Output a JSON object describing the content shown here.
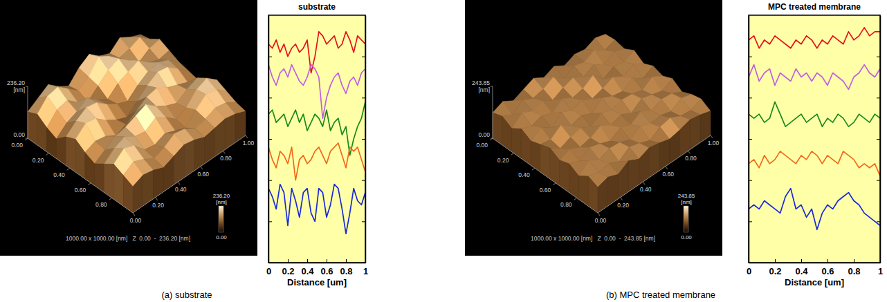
{
  "chart_data": [
    {
      "type": "surface",
      "caption": "(a) substrate",
      "annotation": "1000.00 x 1000.00 [nm]   Z  0.00  -  236.20 [nm]",
      "xlim": [
        0,
        1
      ],
      "xticks": [
        {
          "value": 0,
          "label": "0.00"
        },
        {
          "value": 0.2,
          "label": "0.20"
        },
        {
          "value": 0.4,
          "label": "0.40"
        },
        {
          "value": 0.6,
          "label": "0.60"
        },
        {
          "value": 0.8,
          "label": "0.80"
        }
      ],
      "ylim": [
        0,
        1
      ],
      "yticks": [
        {
          "value": 0,
          "label": "0.00"
        },
        {
          "value": 0.2,
          "label": "0.20"
        },
        {
          "value": 0.4,
          "label": "0.40"
        },
        {
          "value": 0.6,
          "label": "0.60"
        },
        {
          "value": 0.8,
          "label": "0.80"
        },
        {
          "value": 1,
          "label": "1.00"
        }
      ],
      "zlim": [
        0,
        236.2
      ],
      "zticks": [
        {
          "value": 0,
          "label": "0.00"
        },
        {
          "value": 236.2,
          "label": "236.20"
        }
      ],
      "zlabel": "[nm]",
      "z": [
        [
          120,
          150,
          180,
          140,
          110,
          160,
          190,
          150,
          130,
          170,
          140,
          120
        ],
        [
          140,
          190,
          200,
          160,
          120,
          150,
          210,
          180,
          140,
          150,
          170,
          130
        ],
        [
          110,
          160,
          170,
          130,
          100,
          140,
          180,
          200,
          160,
          120,
          150,
          160
        ],
        [
          90,
          130,
          150,
          180,
          140,
          110,
          150,
          170,
          190,
          150,
          130,
          140
        ],
        [
          130,
          170,
          200,
          190,
          150,
          120,
          100,
          140,
          170,
          180,
          160,
          120
        ],
        [
          150,
          190,
          180,
          140,
          110,
          90,
          130,
          170,
          200,
          190,
          150,
          110
        ],
        [
          120,
          140,
          130,
          100,
          120,
          150,
          180,
          190,
          160,
          140,
          120,
          100
        ],
        [
          100,
          130,
          160,
          170,
          190,
          210,
          170,
          140,
          120,
          150,
          170,
          130
        ],
        [
          130,
          170,
          190,
          160,
          150,
          180,
          150,
          110,
          130,
          180,
          200,
          160
        ],
        [
          160,
          200,
          180,
          130,
          120,
          140,
          120,
          100,
          150,
          190,
          180,
          140
        ],
        [
          140,
          170,
          150,
          120,
          140,
          170,
          160,
          130,
          140,
          160,
          150,
          120
        ],
        [
          120,
          140,
          130,
          110,
          130,
          150,
          140,
          120,
          130,
          140,
          130,
          110
        ]
      ],
      "colorbar": {
        "range": [
          0,
          236.2
        ],
        "ticks": [
          {
            "value": 236.2,
            "label": "236.20"
          },
          {
            "value": 0,
            "label": "0.00"
          }
        ],
        "label": "[nm]"
      }
    },
    {
      "type": "line",
      "title": "substrate",
      "xlabel": "Distance [um]",
      "x": [
        0,
        0.04,
        0.08,
        0.12,
        0.16,
        0.2,
        0.24,
        0.28,
        0.32,
        0.36,
        0.4,
        0.44,
        0.48,
        0.52,
        0.56,
        0.6,
        0.64,
        0.68,
        0.72,
        0.76,
        0.8,
        0.84,
        0.88,
        0.92,
        0.96,
        1
      ],
      "xlim": [
        0,
        1
      ],
      "xticks": [
        0,
        0.2,
        0.4,
        0.6,
        0.8,
        1
      ],
      "ylim": [
        0,
        6
      ],
      "yticks": [
        1,
        2,
        3,
        4,
        5
      ],
      "tick_labels": "x",
      "series": [
        {
          "color": "#e8101c",
          "values": [
            5.3,
            5.2,
            5.4,
            5.1,
            5.3,
            5.0,
            5.2,
            5.3,
            5.1,
            5.2,
            5.4,
            4.6,
            5.0,
            5.6,
            5.5,
            5.3,
            5.4,
            5.5,
            5.2,
            5.3,
            5.6,
            5.4,
            5.1,
            5.5,
            5.4,
            5.3
          ]
        },
        {
          "color": "#c060e0",
          "values": [
            4.8,
            4.5,
            4.3,
            4.6,
            4.7,
            4.5,
            4.8,
            4.6,
            4.4,
            4.3,
            4.5,
            4.8,
            4.7,
            4.5,
            3.5,
            4.0,
            4.3,
            4.5,
            4.6,
            4.3,
            4.1,
            4.4,
            4.5,
            4.3,
            4.6,
            4.7
          ]
        },
        {
          "color": "#1a8a1a",
          "values": [
            3.6,
            3.7,
            3.4,
            3.5,
            3.6,
            3.3,
            3.5,
            3.7,
            3.4,
            3.6,
            3.2,
            3.4,
            3.6,
            3.5,
            3.3,
            3.7,
            3.2,
            3.4,
            3.5,
            3.1,
            3.3,
            2.6,
            3.0,
            3.3,
            3.5,
            3.9
          ]
        },
        {
          "color": "#f06a1a",
          "values": [
            2.8,
            2.5,
            2.3,
            2.7,
            2.6,
            2.4,
            2.8,
            2.0,
            2.5,
            2.6,
            2.4,
            2.5,
            2.7,
            2.8,
            2.6,
            2.4,
            2.7,
            2.8,
            2.9,
            2.6,
            2.3,
            2.8,
            2.7,
            2.8,
            2.5,
            2.2
          ]
        },
        {
          "color": "#1a2ad8",
          "values": [
            1.8,
            1.6,
            1.3,
            1.9,
            1.7,
            0.9,
            1.8,
            1.5,
            1.1,
            1.7,
            1.8,
            1.2,
            1.0,
            1.8,
            1.7,
            1.1,
            1.4,
            1.9,
            1.8,
            1.3,
            0.7,
            1.2,
            1.8,
            1.5,
            1.4,
            1.7
          ]
        }
      ]
    },
    {
      "type": "surface",
      "caption": "(b) MPC treated membrane",
      "annotation": "1000.00 x 1000.00 [nm]   Z  0.00  -  243.85 [nm]",
      "xlim": [
        0,
        1
      ],
      "xticks": [
        {
          "value": 0,
          "label": "0.00"
        },
        {
          "value": 0.2,
          "label": "0.20"
        },
        {
          "value": 0.4,
          "label": "0.40"
        },
        {
          "value": 0.6,
          "label": "0.60"
        },
        {
          "value": 0.8,
          "label": "0.80"
        }
      ],
      "ylim": [
        0,
        1
      ],
      "yticks": [
        {
          "value": 0,
          "label": "0.00"
        },
        {
          "value": 0.2,
          "label": "0.20"
        },
        {
          "value": 0.4,
          "label": "0.40"
        },
        {
          "value": 0.6,
          "label": "0.60"
        },
        {
          "value": 0.8,
          "label": "0.80"
        },
        {
          "value": 1,
          "label": "1.00"
        }
      ],
      "zlim": [
        0,
        243.85
      ],
      "zticks": [
        {
          "value": 0,
          "label": "0.00"
        },
        {
          "value": 243.85,
          "label": "243.85"
        }
      ],
      "zlabel": "[nm]",
      "z": [
        [
          120,
          140,
          110,
          130,
          150,
          120,
          140,
          110,
          130,
          120,
          140,
          125
        ],
        [
          135,
          110,
          145,
          120,
          130,
          155,
          115,
          140,
          125,
          150,
          115,
          130
        ],
        [
          110,
          150,
          125,
          140,
          110,
          135,
          150,
          120,
          145,
          115,
          140,
          120
        ],
        [
          140,
          120,
          135,
          115,
          150,
          120,
          130,
          160,
          110,
          135,
          125,
          145
        ],
        [
          115,
          145,
          110,
          150,
          125,
          140,
          115,
          130,
          150,
          120,
          145,
          115
        ],
        [
          130,
          120,
          155,
          120,
          135,
          110,
          150,
          125,
          115,
          145,
          110,
          135
        ],
        [
          145,
          110,
          130,
          140,
          115,
          145,
          125,
          140,
          135,
          120,
          150,
          120
        ],
        [
          120,
          140,
          115,
          125,
          150,
          120,
          135,
          110,
          145,
          130,
          115,
          140
        ],
        [
          135,
          115,
          145,
          130,
          110,
          140,
          120,
          150,
          120,
          140,
          135,
          110
        ],
        [
          110,
          150,
          120,
          140,
          135,
          115,
          145,
          125,
          130,
          115,
          145,
          130
        ],
        [
          140,
          125,
          135,
          110,
          145,
          130,
          110,
          140,
          150,
          125,
          120,
          140
        ],
        [
          120,
          135,
          115,
          145,
          120,
          140,
          130,
          115,
          125,
          140,
          130,
          115
        ]
      ],
      "colorbar": {
        "range": [
          0,
          243.85
        ],
        "ticks": [
          {
            "value": 243.85,
            "label": "243.85"
          },
          {
            "value": 0,
            "label": "0.00"
          }
        ],
        "label": "[nm]"
      }
    },
    {
      "type": "line",
      "title": "MPC treated membrane",
      "xlabel": "Distance [um]",
      "x": [
        0,
        0.04,
        0.08,
        0.12,
        0.16,
        0.2,
        0.24,
        0.28,
        0.32,
        0.36,
        0.4,
        0.44,
        0.48,
        0.52,
        0.56,
        0.6,
        0.64,
        0.68,
        0.72,
        0.76,
        0.8,
        0.84,
        0.88,
        0.92,
        0.96,
        1
      ],
      "xlim": [
        0,
        1
      ],
      "xticks": [
        0,
        0.2,
        0.4,
        0.6,
        0.8,
        1
      ],
      "ylim": [
        0,
        6
      ],
      "yticks": [
        1,
        2,
        3,
        4,
        5
      ],
      "tick_labels": "x",
      "series": [
        {
          "color": "#e8101c",
          "values": [
            5.4,
            5.5,
            5.2,
            5.4,
            5.3,
            5.5,
            5.4,
            5.3,
            5.2,
            5.4,
            5.3,
            5.5,
            5.4,
            5.2,
            5.4,
            5.3,
            5.5,
            5.4,
            5.3,
            5.6,
            5.4,
            5.5,
            5.7,
            5.5,
            5.6,
            5.6
          ]
        },
        {
          "color": "#c060e0",
          "values": [
            4.5,
            4.8,
            4.4,
            4.6,
            4.7,
            4.3,
            4.6,
            4.5,
            4.4,
            4.7,
            4.5,
            4.6,
            4.4,
            4.6,
            4.5,
            4.3,
            4.6,
            4.5,
            4.4,
            4.2,
            4.5,
            4.6,
            4.8,
            4.6,
            4.5,
            4.7
          ]
        },
        {
          "color": "#1a8a1a",
          "values": [
            3.6,
            3.5,
            3.6,
            3.4,
            3.5,
            3.9,
            3.6,
            3.3,
            3.4,
            3.5,
            3.6,
            3.4,
            3.5,
            3.6,
            3.3,
            3.5,
            3.4,
            3.6,
            3.5,
            3.3,
            3.4,
            3.6,
            3.5,
            3.4,
            3.6,
            3.5
          ]
        },
        {
          "color": "#f06a1a",
          "values": [
            2.4,
            2.5,
            2.3,
            2.6,
            2.4,
            2.5,
            2.7,
            2.6,
            2.5,
            2.4,
            2.6,
            2.5,
            2.7,
            2.6,
            2.4,
            2.6,
            2.5,
            2.4,
            2.7,
            2.6,
            2.5,
            2.3,
            2.4,
            2.3,
            2.4,
            2.1
          ]
        },
        {
          "color": "#1a2ad8",
          "values": [
            1.3,
            1.4,
            1.3,
            1.5,
            1.4,
            1.3,
            1.2,
            1.6,
            1.8,
            1.3,
            1.4,
            1.1,
            1.3,
            0.8,
            1.2,
            1.4,
            1.3,
            1.5,
            1.6,
            1.7,
            1.5,
            1.4,
            1.2,
            1.1,
            1.0,
            0.9
          ]
        }
      ]
    }
  ]
}
